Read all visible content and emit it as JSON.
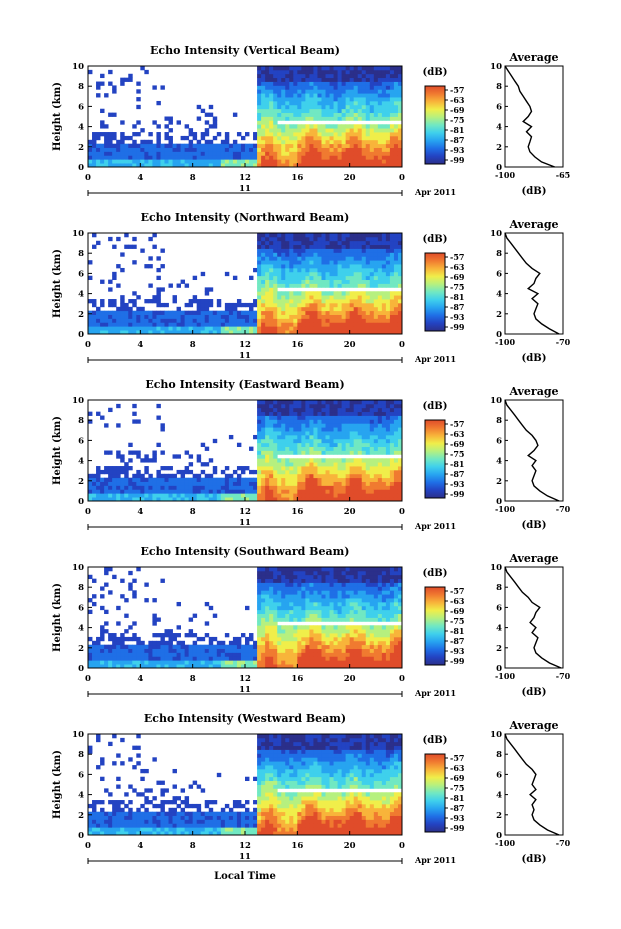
{
  "figure": {
    "xlabel": "Local Time",
    "date_label": "Apr 2011",
    "day_label": "11",
    "colorbar_label": "(dB)",
    "colorbar_ticks": [
      "-57",
      "-63",
      "-69",
      "-75",
      "-81",
      "-87",
      "-93",
      "-99"
    ],
    "avg_title": "Average",
    "avg_xlabel": "(dB)"
  },
  "colors": {
    "scale": [
      "#2b2f8a",
      "#2343c2",
      "#1f6fe6",
      "#27a4f0",
      "#3fd0ec",
      "#71e8c2",
      "#b6f07f",
      "#f0ee4a",
      "#f8b43a",
      "#f07a30",
      "#e04c2a"
    ]
  },
  "chart_data": [
    {
      "type": "heatmap",
      "title": "Echo Intensity (Vertical Beam)",
      "ylabel": "Height (km)",
      "x_ticks": [
        "0",
        "4",
        "8",
        "12",
        "16",
        "20",
        "0"
      ],
      "y_ticks": [
        "0",
        "2",
        "4",
        "6",
        "8",
        "10"
      ],
      "xlim": [
        0,
        24
      ],
      "ylim": [
        0,
        10
      ],
      "average_profile": {
        "x_ticks": [
          "-100",
          "-65"
        ],
        "xlim": [
          -100,
          -65
        ],
        "height": [
          0,
          0.5,
          1,
          1.5,
          2,
          2.5,
          3,
          3.5,
          4,
          4.5,
          5,
          5.5,
          6,
          6.5,
          7,
          7.5,
          8,
          8.5,
          9,
          9.5,
          10
        ],
        "db": [
          -70,
          -78,
          -82,
          -85,
          -86,
          -85,
          -84,
          -87,
          -84,
          -89,
          -86,
          -84,
          -85,
          -87,
          -89,
          -91,
          -92,
          -94,
          -96,
          -98,
          -100
        ]
      }
    },
    {
      "type": "heatmap",
      "title": "Echo Intensity (Northward Beam)",
      "ylabel": "Height (km)",
      "x_ticks": [
        "0",
        "4",
        "8",
        "12",
        "16",
        "20",
        "0"
      ],
      "y_ticks": [
        "0",
        "2",
        "4",
        "6",
        "8",
        "10"
      ],
      "xlim": [
        0,
        24
      ],
      "ylim": [
        0,
        10
      ],
      "average_profile": {
        "x_ticks": [
          "-100",
          "-70"
        ],
        "xlim": [
          -100,
          -70
        ],
        "height": [
          0,
          0.5,
          1,
          1.5,
          2,
          2.5,
          3,
          3.5,
          4,
          4.5,
          5,
          5.5,
          6,
          6.5,
          7,
          7.5,
          8,
          8.5,
          9,
          9.5,
          10
        ],
        "db": [
          -72,
          -77,
          -81,
          -84,
          -85,
          -84,
          -83,
          -86,
          -83,
          -88,
          -85,
          -84,
          -82,
          -86,
          -89,
          -91,
          -93,
          -95,
          -97,
          -99,
          -100
        ]
      }
    },
    {
      "type": "heatmap",
      "title": "Echo Intensity (Eastward Beam)",
      "ylabel": "Height (km)",
      "x_ticks": [
        "0",
        "4",
        "8",
        "12",
        "16",
        "20",
        "0"
      ],
      "y_ticks": [
        "0",
        "2",
        "4",
        "6",
        "8",
        "10"
      ],
      "xlim": [
        0,
        24
      ],
      "ylim": [
        0,
        10
      ],
      "average_profile": {
        "x_ticks": [
          "-100",
          "-70"
        ],
        "xlim": [
          -100,
          -70
        ],
        "height": [
          0,
          0.5,
          1,
          1.5,
          2,
          2.5,
          3,
          3.5,
          4,
          4.5,
          5,
          5.5,
          6,
          6.5,
          7,
          7.5,
          8,
          8.5,
          9,
          9.5,
          10
        ],
        "db": [
          -72,
          -78,
          -82,
          -85,
          -86,
          -85,
          -84,
          -86,
          -84,
          -88,
          -85,
          -83,
          -84,
          -86,
          -89,
          -91,
          -93,
          -95,
          -97,
          -99,
          -100
        ]
      }
    },
    {
      "type": "heatmap",
      "title": "Echo Intensity (Southward Beam)",
      "ylabel": "Height (km)",
      "x_ticks": [
        "0",
        "4",
        "8",
        "12",
        "16",
        "20",
        "0"
      ],
      "y_ticks": [
        "0",
        "2",
        "4",
        "6",
        "8",
        "10"
      ],
      "xlim": [
        0,
        24
      ],
      "ylim": [
        0,
        10
      ],
      "average_profile": {
        "x_ticks": [
          "-100",
          "-70"
        ],
        "xlim": [
          -100,
          -70
        ],
        "height": [
          0,
          0.5,
          1,
          1.5,
          2,
          2.5,
          3,
          3.5,
          4,
          4.5,
          5,
          5.5,
          6,
          6.5,
          7,
          7.5,
          8,
          8.5,
          9,
          9.5,
          10
        ],
        "db": [
          -71,
          -77,
          -81,
          -84,
          -85,
          -84,
          -83,
          -86,
          -84,
          -87,
          -85,
          -84,
          -82,
          -86,
          -88,
          -91,
          -93,
          -95,
          -97,
          -99,
          -100
        ]
      }
    },
    {
      "type": "heatmap",
      "title": "Echo Intensity (Westward Beam)",
      "ylabel": "Height (km)",
      "x_ticks": [
        "0",
        "4",
        "8",
        "12",
        "16",
        "20",
        "0"
      ],
      "y_ticks": [
        "0",
        "2",
        "4",
        "6",
        "8",
        "10"
      ],
      "xlim": [
        0,
        24
      ],
      "ylim": [
        0,
        10
      ],
      "average_profile": {
        "x_ticks": [
          "-100",
          "-70"
        ],
        "xlim": [
          -100,
          -70
        ],
        "height": [
          0,
          0.5,
          1,
          1.5,
          2,
          2.5,
          3,
          3.5,
          4,
          4.5,
          5,
          5.5,
          6,
          6.5,
          7,
          7.5,
          8,
          8.5,
          9,
          9.5,
          10
        ],
        "db": [
          -72,
          -78,
          -82,
          -85,
          -86,
          -85,
          -86,
          -84,
          -87,
          -84,
          -86,
          -85,
          -84,
          -86,
          -89,
          -91,
          -93,
          -95,
          -97,
          -99,
          -100
        ]
      }
    }
  ]
}
